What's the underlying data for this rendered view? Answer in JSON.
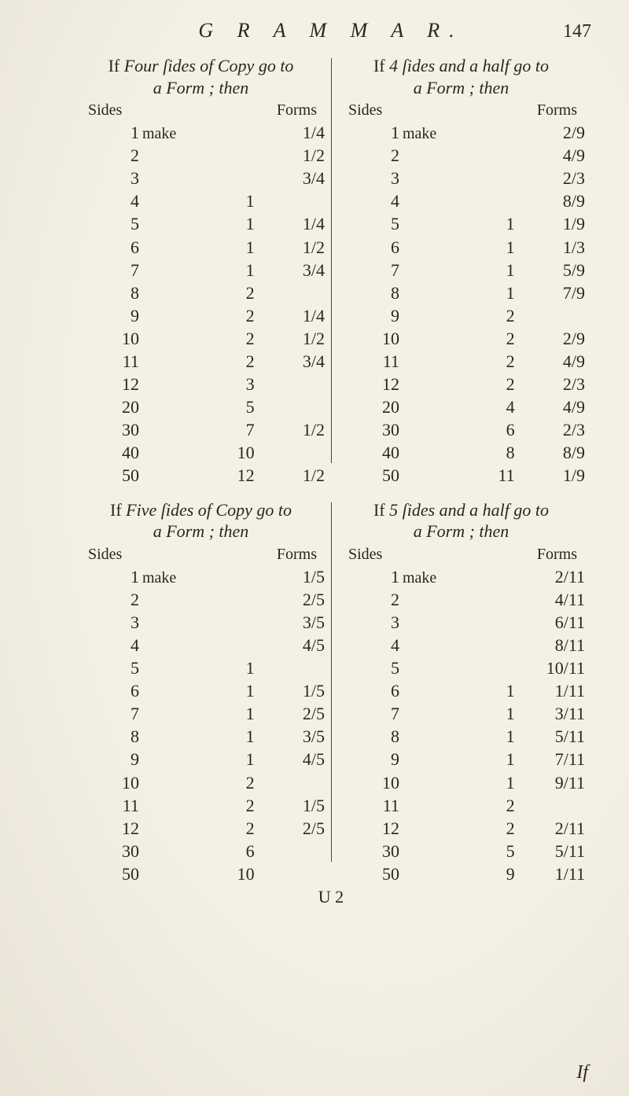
{
  "header": {
    "running_title": "G R A M M A R.",
    "page_number": "147"
  },
  "signature": "U 2",
  "catchword": "If",
  "labels": {
    "sides": "Sides",
    "forms": "Forms",
    "make": "make"
  },
  "sections": [
    {
      "title_html": "If Four ſides of Copy go to a Form; then",
      "rows": [
        {
          "sides": "1",
          "note": "make",
          "whole": "",
          "frac": "1/4"
        },
        {
          "sides": "2",
          "note": "",
          "whole": "",
          "frac": "1/2"
        },
        {
          "sides": "3",
          "note": "",
          "whole": "",
          "frac": "3/4"
        },
        {
          "sides": "4",
          "note": "",
          "whole": "1",
          "frac": ""
        },
        {
          "sides": "5",
          "note": "",
          "whole": "1",
          "frac": "1/4"
        },
        {
          "sides": "6",
          "note": "",
          "whole": "1",
          "frac": "1/2"
        },
        {
          "sides": "7",
          "note": "",
          "whole": "1",
          "frac": "3/4"
        },
        {
          "sides": "8",
          "note": "",
          "whole": "2",
          "frac": ""
        },
        {
          "sides": "9",
          "note": "",
          "whole": "2",
          "frac": "1/4"
        },
        {
          "sides": "10",
          "note": "",
          "whole": "2",
          "frac": "1/2"
        },
        {
          "sides": "11",
          "note": "",
          "whole": "2",
          "frac": "3/4"
        },
        {
          "sides": "12",
          "note": "",
          "whole": "3",
          "frac": ""
        },
        {
          "sides": "20",
          "note": "",
          "whole": "5",
          "frac": ""
        },
        {
          "sides": "30",
          "note": "",
          "whole": "7",
          "frac": "1/2"
        },
        {
          "sides": "40",
          "note": "",
          "whole": "10",
          "frac": ""
        },
        {
          "sides": "50",
          "note": "",
          "whole": "12",
          "frac": "1/2"
        }
      ]
    },
    {
      "title_html": "If 4 ſides and a half go to a Form; then",
      "rows": [
        {
          "sides": "1",
          "note": "make",
          "whole": "",
          "frac": "2/9"
        },
        {
          "sides": "2",
          "note": "",
          "whole": "",
          "frac": "4/9"
        },
        {
          "sides": "3",
          "note": "",
          "whole": "",
          "frac": "2/3"
        },
        {
          "sides": "4",
          "note": "",
          "whole": "",
          "frac": "8/9"
        },
        {
          "sides": "5",
          "note": "",
          "whole": "1",
          "frac": "1/9"
        },
        {
          "sides": "6",
          "note": "",
          "whole": "1",
          "frac": "1/3"
        },
        {
          "sides": "7",
          "note": "",
          "whole": "1",
          "frac": "5/9"
        },
        {
          "sides": "8",
          "note": "",
          "whole": "1",
          "frac": "7/9"
        },
        {
          "sides": "9",
          "note": "",
          "whole": "2",
          "frac": ""
        },
        {
          "sides": "10",
          "note": "",
          "whole": "2",
          "frac": "2/9"
        },
        {
          "sides": "11",
          "note": "",
          "whole": "2",
          "frac": "4/9"
        },
        {
          "sides": "12",
          "note": "",
          "whole": "2",
          "frac": "2/3"
        },
        {
          "sides": "20",
          "note": "",
          "whole": "4",
          "frac": "4/9"
        },
        {
          "sides": "30",
          "note": "",
          "whole": "6",
          "frac": "2/3"
        },
        {
          "sides": "40",
          "note": "",
          "whole": "8",
          "frac": "8/9"
        },
        {
          "sides": "50",
          "note": "",
          "whole": "11",
          "frac": "1/9"
        }
      ]
    },
    {
      "title_html": "If Five ſides of Copy go to a Form; then",
      "rows": [
        {
          "sides": "1",
          "note": "make",
          "whole": "",
          "frac": "1/5"
        },
        {
          "sides": "2",
          "note": "",
          "whole": "",
          "frac": "2/5"
        },
        {
          "sides": "3",
          "note": "",
          "whole": "",
          "frac": "3/5"
        },
        {
          "sides": "4",
          "note": "",
          "whole": "",
          "frac": "4/5"
        },
        {
          "sides": "5",
          "note": "",
          "whole": "1",
          "frac": ""
        },
        {
          "sides": "6",
          "note": "",
          "whole": "1",
          "frac": "1/5"
        },
        {
          "sides": "7",
          "note": "",
          "whole": "1",
          "frac": "2/5"
        },
        {
          "sides": "8",
          "note": "",
          "whole": "1",
          "frac": "3/5"
        },
        {
          "sides": "9",
          "note": "",
          "whole": "1",
          "frac": "4/5"
        },
        {
          "sides": "10",
          "note": "",
          "whole": "2",
          "frac": ""
        },
        {
          "sides": "11",
          "note": "",
          "whole": "2",
          "frac": "1/5"
        },
        {
          "sides": "12",
          "note": "",
          "whole": "2",
          "frac": "2/5"
        },
        {
          "sides": "30",
          "note": "",
          "whole": "6",
          "frac": ""
        },
        {
          "sides": "50",
          "note": "",
          "whole": "10",
          "frac": ""
        }
      ]
    },
    {
      "title_html": "If 5 ſides and a half go to a Form; then",
      "rows": [
        {
          "sides": "1",
          "note": "make",
          "whole": "",
          "frac": "2/11"
        },
        {
          "sides": "2",
          "note": "",
          "whole": "",
          "frac": "4/11"
        },
        {
          "sides": "3",
          "note": "",
          "whole": "",
          "frac": "6/11"
        },
        {
          "sides": "4",
          "note": "",
          "whole": "",
          "frac": "8/11"
        },
        {
          "sides": "5",
          "note": "",
          "whole": "",
          "frac": "10/11"
        },
        {
          "sides": "6",
          "note": "",
          "whole": "1",
          "frac": "1/11"
        },
        {
          "sides": "7",
          "note": "",
          "whole": "1",
          "frac": "3/11"
        },
        {
          "sides": "8",
          "note": "",
          "whole": "1",
          "frac": "5/11"
        },
        {
          "sides": "9",
          "note": "",
          "whole": "1",
          "frac": "7/11"
        },
        {
          "sides": "10",
          "note": "",
          "whole": "1",
          "frac": "9/11"
        },
        {
          "sides": "11",
          "note": "",
          "whole": "2",
          "frac": ""
        },
        {
          "sides": "12",
          "note": "",
          "whole": "2",
          "frac": "2/11"
        },
        {
          "sides": "30",
          "note": "",
          "whole": "5",
          "frac": "5/11"
        },
        {
          "sides": "50",
          "note": "",
          "whole": "9",
          "frac": "1/11"
        }
      ]
    }
  ]
}
